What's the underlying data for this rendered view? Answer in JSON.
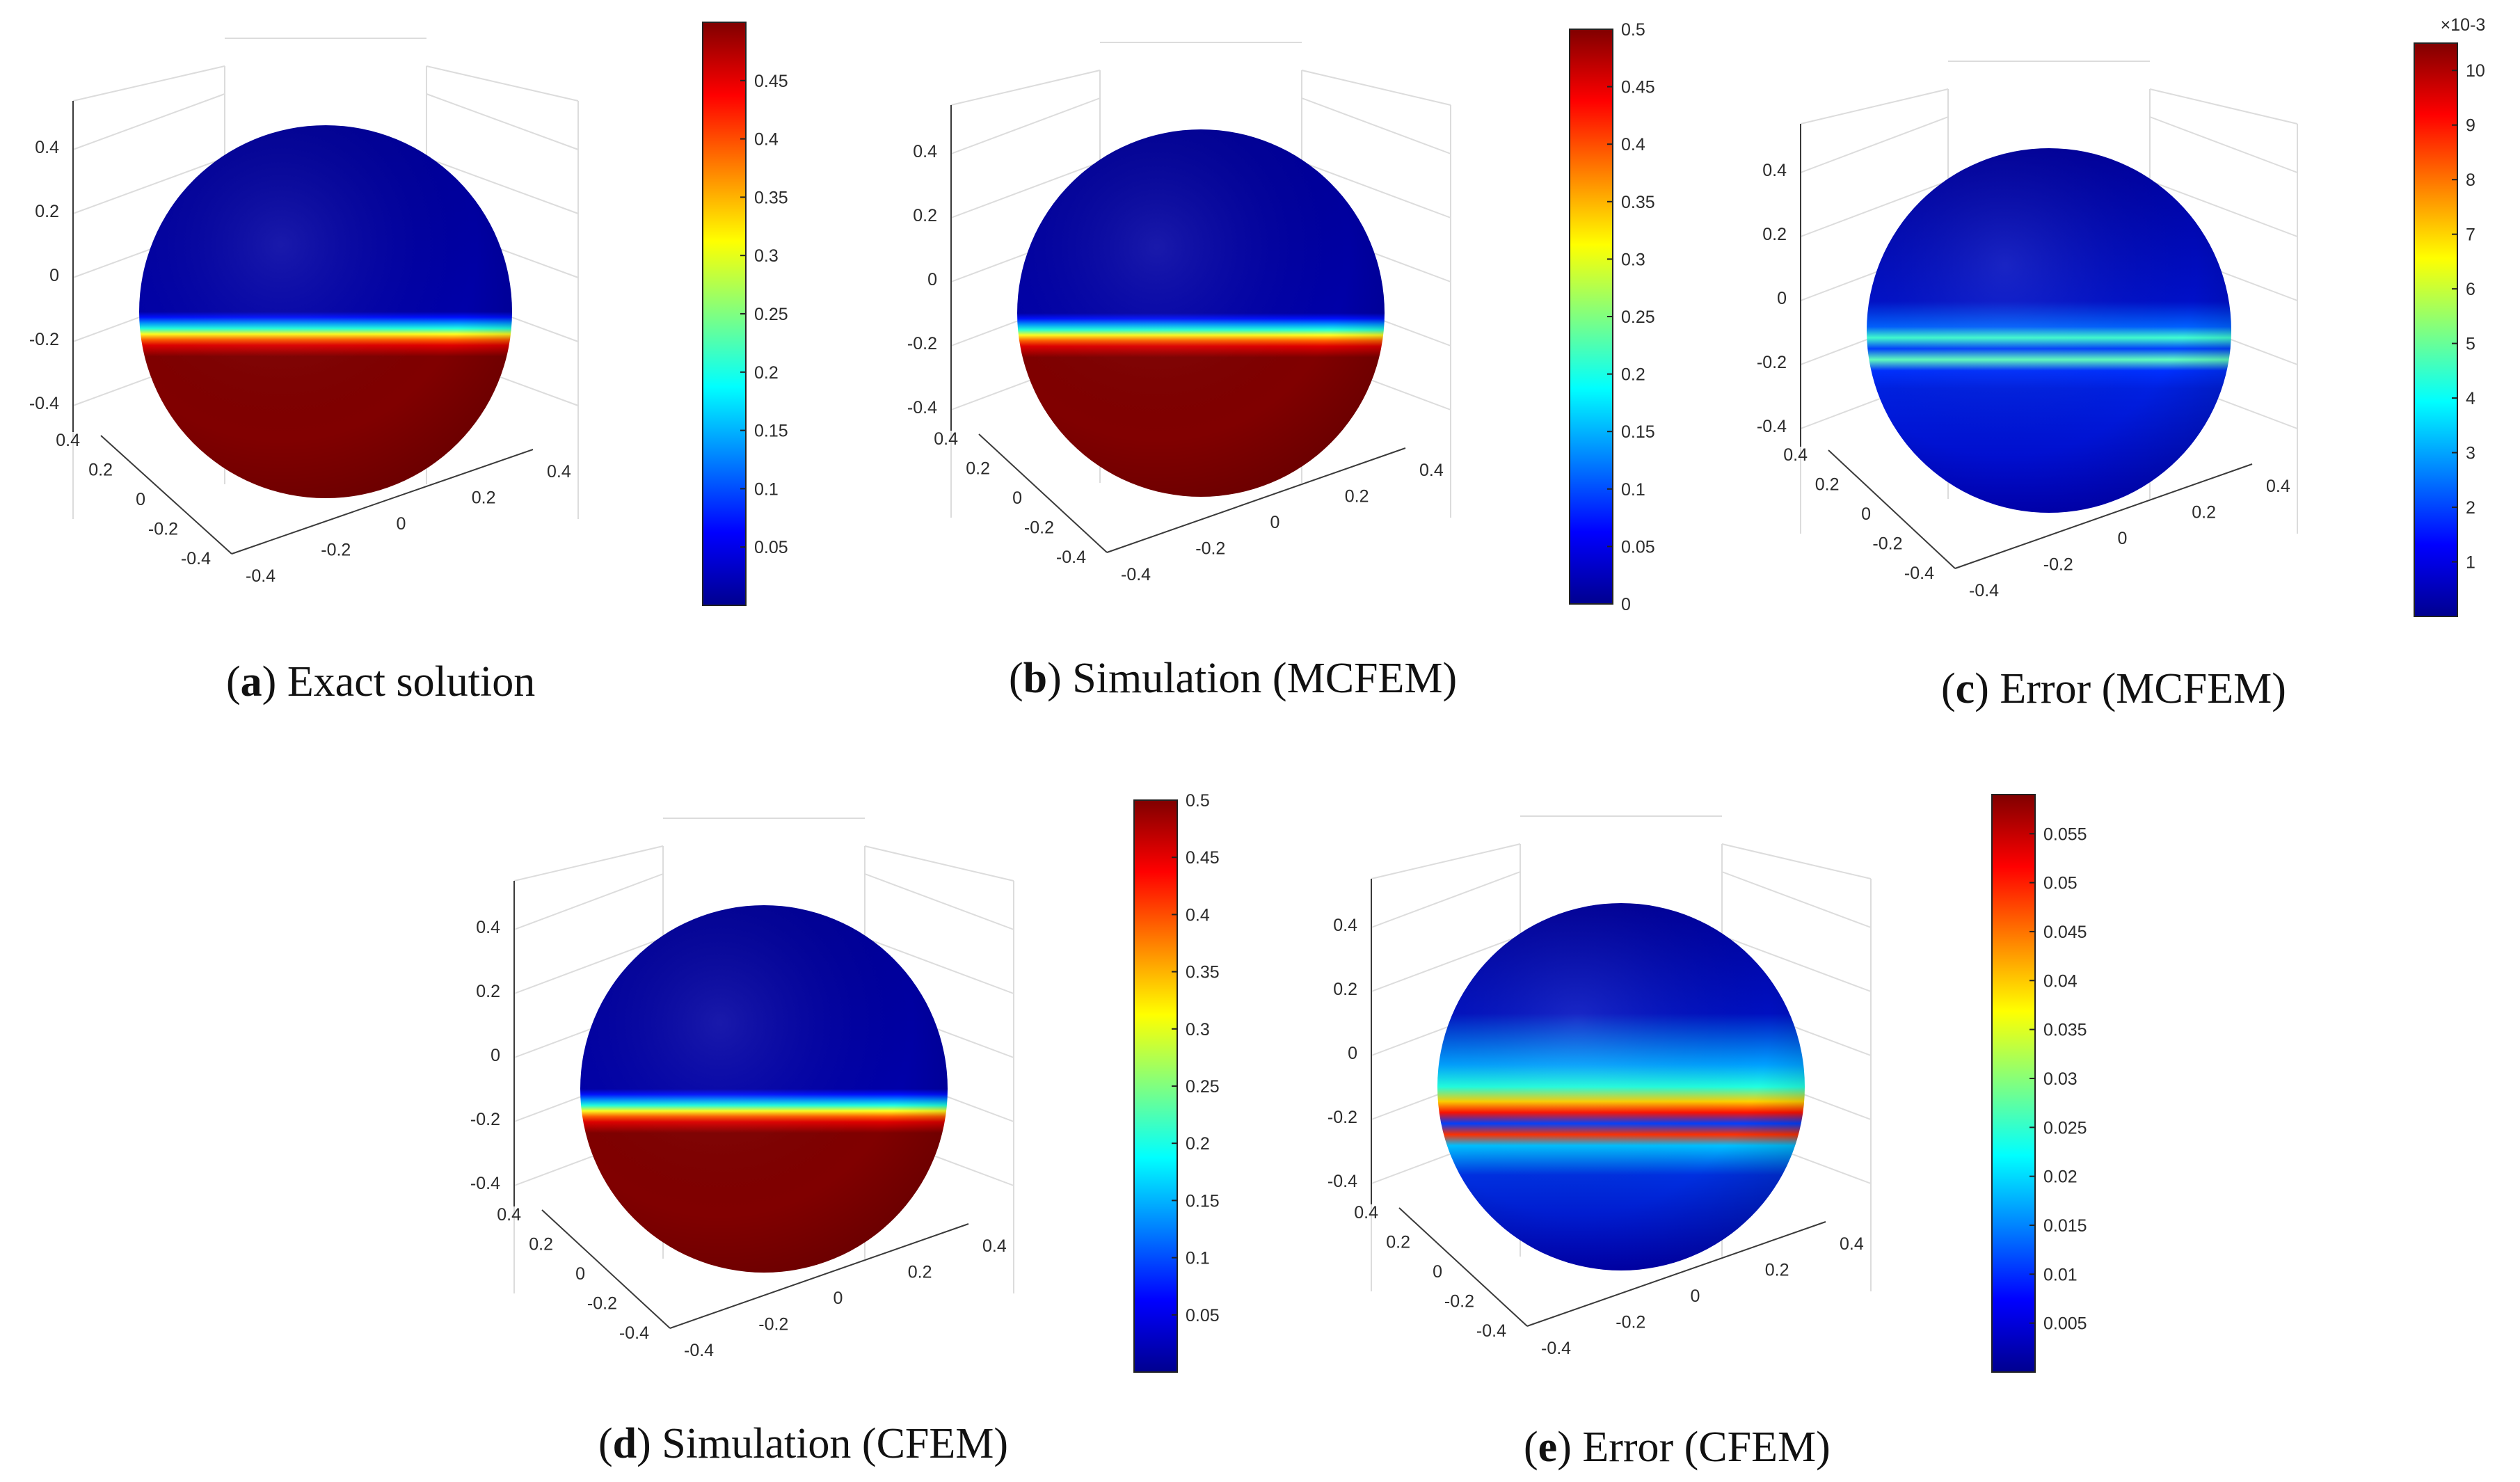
{
  "chart_data": [
    {
      "type": "heatmap",
      "panel_label": "a",
      "title": "Exact solution",
      "colorbar": {
        "min": 0,
        "max": 0.5,
        "ticks": [
          "0.05",
          "0.1",
          "0.15",
          "0.2",
          "0.25",
          "0.3",
          "0.35",
          "0.4",
          "0.45"
        ],
        "exponent": ""
      },
      "field": "interface",
      "axes": {
        "z_ticks": [
          "0.4",
          "0.2",
          "0",
          "-0.2",
          "-0.4"
        ],
        "x_ticks": [
          "0.4",
          "0.2",
          "0",
          "-0.2",
          "-0.4"
        ],
        "y_ticks": [
          "-0.4",
          "-0.2",
          "0",
          "0.2",
          "0.4"
        ]
      }
    },
    {
      "type": "heatmap",
      "panel_label": "b",
      "title": "Simulation (MCFEM)",
      "colorbar": {
        "min": 0,
        "max": 0.5,
        "ticks": [
          "0",
          "0.05",
          "0.1",
          "0.15",
          "0.2",
          "0.25",
          "0.3",
          "0.35",
          "0.4",
          "0.45",
          "0.5"
        ],
        "exponent": ""
      },
      "field": "interface",
      "axes": {
        "z_ticks": [
          "0.4",
          "0.2",
          "0",
          "-0.2",
          "-0.4"
        ],
        "x_ticks": [
          "0.4",
          "0.2",
          "0",
          "-0.2",
          "-0.4"
        ],
        "y_ticks": [
          "-0.4",
          "-0.2",
          "0",
          "0.2",
          "0.4"
        ]
      }
    },
    {
      "type": "heatmap",
      "panel_label": "c",
      "title": "Error (MCFEM)",
      "colorbar": {
        "min": 0,
        "max": 10.5,
        "ticks": [
          "1",
          "2",
          "3",
          "4",
          "5",
          "6",
          "7",
          "8",
          "9",
          "10"
        ],
        "exponent": "×10-3"
      },
      "field": "error_narrow",
      "axes": {
        "z_ticks": [
          "0.4",
          "0.2",
          "0",
          "-0.2",
          "-0.4"
        ],
        "x_ticks": [
          "0.4",
          "0.2",
          "0",
          "-0.2",
          "-0.4"
        ],
        "y_ticks": [
          "-0.4",
          "-0.2",
          "0",
          "0.2",
          "0.4"
        ]
      }
    },
    {
      "type": "heatmap",
      "panel_label": "d",
      "title": "Simulation (CFEM)",
      "colorbar": {
        "min": 0,
        "max": 0.5,
        "ticks": [
          "0.05",
          "0.1",
          "0.15",
          "0.2",
          "0.25",
          "0.3",
          "0.35",
          "0.4",
          "0.45",
          "0.5"
        ],
        "exponent": ""
      },
      "field": "interface",
      "axes": {
        "z_ticks": [
          "0.4",
          "0.2",
          "0",
          "-0.2",
          "-0.4"
        ],
        "x_ticks": [
          "0.4",
          "0.2",
          "0",
          "-0.2",
          "-0.4"
        ],
        "y_ticks": [
          "-0.4",
          "-0.2",
          "0",
          "0.2",
          "0.4"
        ]
      }
    },
    {
      "type": "heatmap",
      "panel_label": "e",
      "title": "Error (CFEM)",
      "colorbar": {
        "min": 0,
        "max": 0.059,
        "ticks": [
          "0.005",
          "0.01",
          "0.015",
          "0.02",
          "0.025",
          "0.03",
          "0.035",
          "0.04",
          "0.045",
          "0.05",
          "0.055"
        ],
        "exponent": ""
      },
      "field": "error_wide",
      "axes": {
        "z_ticks": [
          "0.4",
          "0.2",
          "0",
          "-0.2",
          "-0.4"
        ],
        "x_ticks": [
          "0.4",
          "0.2",
          "0",
          "-0.2",
          "-0.4"
        ],
        "y_ticks": [
          "-0.4",
          "-0.2",
          "0",
          "0.2",
          "0.4"
        ]
      }
    }
  ],
  "colors": {
    "jet": [
      "#00008f",
      "#0000ff",
      "#0080ff",
      "#00ffff",
      "#80ff80",
      "#ffff00",
      "#ff8000",
      "#ff0000",
      "#800000"
    ]
  }
}
